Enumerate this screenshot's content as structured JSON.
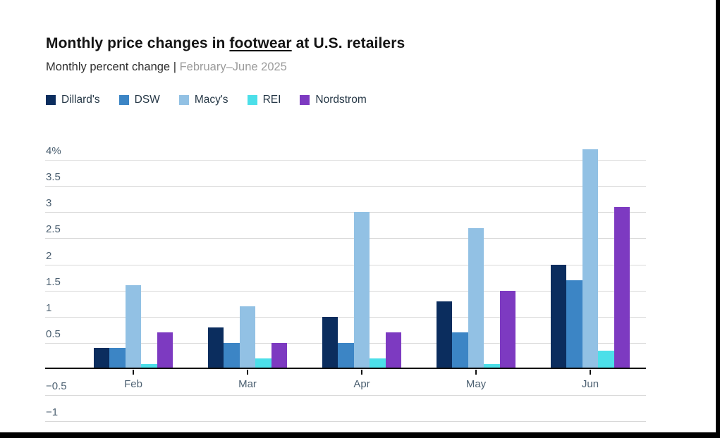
{
  "page": {
    "title_prefix": "Monthly price changes in ",
    "title_underlined": "footwear",
    "title_suffix": " at U.S. retailers",
    "subtitle_dark": "Monthly percent change | ",
    "subtitle_light": "February–June 2025"
  },
  "legend": {
    "items": [
      {
        "label": "Dillard's",
        "color": "#0b2d5e"
      },
      {
        "label": "DSW",
        "color": "#3c85c5"
      },
      {
        "label": "Macy's",
        "color": "#92c1e4"
      },
      {
        "label": "REI",
        "color": "#4cdfe9"
      },
      {
        "label": "Nordstrom",
        "color": "#7d3ac1"
      }
    ]
  },
  "chart_data": {
    "type": "bar",
    "title": "Monthly price changes in footwear at U.S. retailers",
    "subtitle": "Monthly percent change | February–June 2025",
    "categories": [
      "Feb",
      "Mar",
      "Apr",
      "May",
      "Jun"
    ],
    "series": [
      {
        "name": "Dillard's",
        "color": "#0b2d5e",
        "values": [
          0.4,
          0.8,
          1.0,
          1.3,
          2.0
        ]
      },
      {
        "name": "DSW",
        "color": "#3c85c5",
        "values": [
          0.4,
          0.5,
          0.5,
          0.7,
          1.7
        ]
      },
      {
        "name": "Macy's",
        "color": "#92c1e4",
        "values": [
          1.6,
          1.2,
          3.0,
          2.7,
          4.2
        ]
      },
      {
        "name": "REI",
        "color": "#4cdfe9",
        "values": [
          0.1,
          0.2,
          0.2,
          0.1,
          0.35
        ]
      },
      {
        "name": "Nordstrom",
        "color": "#7d3ac1",
        "values": [
          0.7,
          0.5,
          0.7,
          1.5,
          3.1
        ]
      }
    ],
    "xlabel": "",
    "ylabel": "Monthly percent change",
    "ylim": [
      -1,
      4
    ],
    "yticks": [
      {
        "value": 4,
        "label": "4%"
      },
      {
        "value": 3.5,
        "label": "3.5"
      },
      {
        "value": 3,
        "label": "3"
      },
      {
        "value": 2.5,
        "label": "2.5"
      },
      {
        "value": 2,
        "label": "2"
      },
      {
        "value": 1.5,
        "label": "1.5"
      },
      {
        "value": 1,
        "label": "1"
      },
      {
        "value": 0.5,
        "label": "0.5"
      },
      {
        "value": 0,
        "label": ""
      },
      {
        "value": -0.5,
        "label": "−0.5"
      },
      {
        "value": -1,
        "label": "−1"
      }
    ],
    "grid": true,
    "legend_position": "top-left"
  }
}
